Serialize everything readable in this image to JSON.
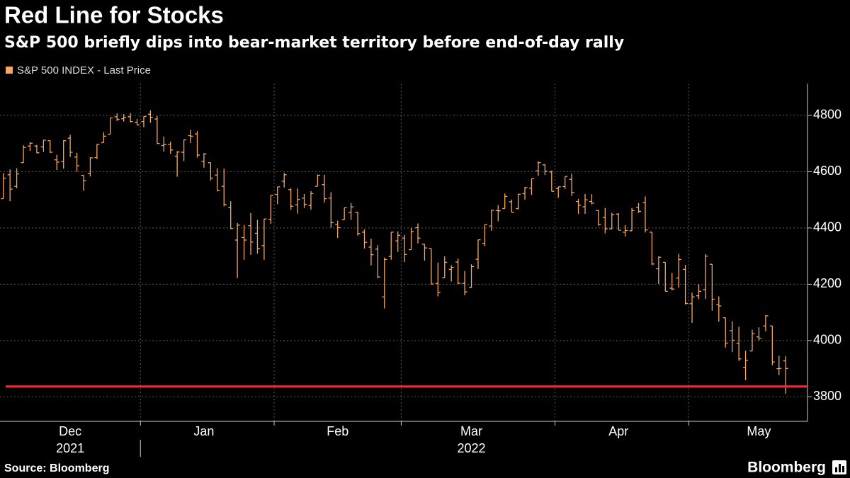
{
  "chart_data": {
    "type": "ohlc",
    "title": "Red Line for Stocks",
    "subtitle": "S&P 500 briefly dips into bear-market territory before end-of-day rally",
    "source": "Source: Bloomberg",
    "brand": "Bloomberg",
    "categories": [
      null,
      null,
      null,
      null,
      null,
      null,
      null,
      null,
      null,
      null,
      "Dec",
      null,
      null,
      null,
      null,
      null,
      null,
      null,
      null,
      null,
      null,
      null,
      null,
      null,
      null,
      null,
      null,
      null,
      null,
      null,
      "Jan",
      null,
      null,
      null,
      null,
      null,
      null,
      null,
      null,
      null,
      null,
      null,
      null,
      null,
      null,
      null,
      null,
      null,
      null,
      null,
      "Feb",
      null,
      null,
      null,
      null,
      null,
      null,
      null,
      null,
      null,
      null,
      null,
      null,
      null,
      null,
      null,
      null,
      null,
      null,
      null,
      "Mar",
      null,
      null,
      null,
      null,
      null,
      null,
      null,
      null,
      null,
      null,
      null,
      null,
      null,
      null,
      null,
      null,
      null,
      null,
      null,
      null,
      null,
      "Apr",
      null,
      null,
      null,
      null,
      null,
      null,
      null,
      null,
      null,
      null,
      null,
      null,
      null,
      null,
      null,
      null,
      null,
      null,
      null,
      null,
      "May",
      null,
      null,
      null,
      null
    ],
    "category_years": [
      null,
      null,
      null,
      null,
      null,
      null,
      null,
      null,
      null,
      null,
      "2021",
      null,
      null,
      null,
      null,
      null,
      null,
      null,
      null,
      null,
      null,
      null,
      null,
      null,
      null,
      null,
      null,
      null,
      null,
      null,
      null,
      null,
      null,
      null,
      null,
      null,
      null,
      null,
      null,
      null,
      null,
      null,
      null,
      null,
      null,
      null,
      null,
      null,
      null,
      null,
      null,
      null,
      null,
      null,
      null,
      null,
      null,
      null,
      null,
      null,
      null,
      null,
      null,
      null,
      null,
      null,
      null,
      null,
      null,
      null,
      "2022",
      null,
      null,
      null,
      null,
      null,
      null,
      null,
      null,
      null,
      null,
      null,
      null,
      null,
      null,
      null,
      null,
      null,
      null,
      null,
      null,
      null,
      null,
      null,
      null,
      null,
      null,
      null,
      null,
      null,
      null,
      null,
      null,
      null,
      null,
      null,
      null,
      null,
      null,
      null,
      null,
      null,
      null,
      null,
      null,
      null,
      null,
      null
    ],
    "series": [
      {
        "name": "S&P 500 INDEX - Last Price",
        "color": "#f5a85e",
        "open": [
          4504,
          4589,
          4548,
          4632,
          4691,
          4691,
          4688,
          4710,
          4642,
          4636,
          4719,
          4652,
          4587,
          4594,
          4650,
          4703,
          4733,
          4795,
          4788,
          4795,
          4775,
          4778,
          4804,
          4787,
          4693,
          4697,
          4655,
          4669,
          4728,
          4734,
          4637,
          4632,
          4588,
          4548,
          4472,
          4357,
          4366,
          4408,
          4381,
          4337,
          4431,
          4519,
          4566,
          4536,
          4482,
          4506,
          4480,
          4548,
          4554,
          4506,
          4412,
          4429,
          4455,
          4456,
          4385,
          4332,
          4325,
          4155,
          4299,
          4354,
          4364,
          4323,
          4401,
          4342,
          4327,
          4203,
          4223,
          4253,
          4279,
          4203,
          4189,
          4289,
          4345,
          4407,
          4462,
          4469,
          4493,
          4469,
          4522,
          4541,
          4603,
          4624,
          4599,
          4540,
          4547,
          4573,
          4494,
          4475,
          4494,
          4462,
          4437,
          4397,
          4449,
          4385,
          4390,
          4473,
          4490,
          4385,
          4255,
          4278,
          4186,
          4222,
          4253,
          4131,
          4159,
          4181,
          4271,
          4128,
          4081,
          4035,
          3990,
          3904,
          3963,
          4013,
          4052,
          4052,
          3900,
          3928
        ],
        "high": [
          4595,
          4608,
          4612,
          4694,
          4705,
          4695,
          4713,
          4711,
          4660,
          4712,
          4731,
          4667,
          4588,
          4651,
          4698,
          4740,
          4791,
          4807,
          4804,
          4808,
          4787,
          4796,
          4818,
          4798,
          4725,
          4707,
          4673,
          4714,
          4749,
          4744,
          4666,
          4632,
          4612,
          4611,
          4495,
          4418,
          4411,
          4453,
          4429,
          4432,
          4516,
          4546,
          4595,
          4540,
          4540,
          4521,
          4531,
          4590,
          4589,
          4527,
          4426,
          4472,
          4489,
          4456,
          4395,
          4362,
          4339,
          4295,
          4385,
          4388,
          4375,
          4401,
          4416,
          4343,
          4327,
          4277,
          4299,
          4268,
          4291,
          4247,
          4271,
          4358,
          4412,
          4465,
          4481,
          4522,
          4501,
          4521,
          4546,
          4575,
          4637,
          4627,
          4604,
          4547,
          4583,
          4593,
          4503,
          4521,
          4520,
          4464,
          4471,
          4454,
          4453,
          4410,
          4471,
          4489,
          4512,
          4386,
          4299,
          4278,
          4240,
          4308,
          4269,
          4170,
          4200,
          4307,
          4271,
          4157,
          4081,
          4068,
          4049,
          3964,
          4038,
          4047,
          4090,
          4052,
          3946,
          3944
        ],
        "low": [
          4504,
          4495,
          4541,
          4632,
          4674,
          4665,
          4670,
          4667,
          4606,
          4611,
          4652,
          4600,
          4532,
          4583,
          4645,
          4703,
          4733,
          4780,
          4778,
          4775,
          4765,
          4758,
          4774,
          4700,
          4671,
          4663,
          4582,
          4638,
          4702,
          4650,
          4614,
          4568,
          4530,
          4477,
          4396,
          4222,
          4287,
          4305,
          4309,
          4287,
          4415,
          4484,
          4544,
          4465,
          4451,
          4471,
          4465,
          4548,
          4491,
          4401,
          4364,
          4429,
          4429,
          4373,
          4327,
          4267,
          4221,
          4114,
          4287,
          4315,
          4279,
          4323,
          4345,
          4284,
          4199,
          4157,
          4223,
          4210,
          4200,
          4161,
          4187,
          4254,
          4335,
          4390,
          4424,
          4469,
          4455,
          4465,
          4501,
          4518,
          4585,
          4588,
          4530,
          4507,
          4539,
          4514,
          4450,
          4450,
          4484,
          4408,
          4381,
          4395,
          4392,
          4370,
          4390,
          4453,
          4384,
          4268,
          4201,
          4175,
          4178,
          4188,
          4128,
          4063,
          4147,
          4148,
          4106,
          4067,
          3975,
          3959,
          3928,
          3859,
          3963,
          3999,
          4033,
          3912,
          3877,
          3811
        ],
        "close": [
          4577,
          4538,
          4592,
          4686,
          4701,
          4667,
          4712,
          4669,
          4634,
          4710,
          4669,
          4621,
          4568,
          4649,
          4697,
          4726,
          4791,
          4786,
          4793,
          4778,
          4766,
          4796,
          4793,
          4700,
          4696,
          4677,
          4670,
          4713,
          4726,
          4659,
          4663,
          4577,
          4533,
          4483,
          4398,
          4410,
          4357,
          4350,
          4327,
          4432,
          4516,
          4546,
          4589,
          4477,
          4501,
          4484,
          4522,
          4587,
          4504,
          4419,
          4401,
          4472,
          4475,
          4380,
          4349,
          4305,
          4226,
          4288,
          4385,
          4374,
          4306,
          4387,
          4364,
          4329,
          4201,
          4171,
          4278,
          4260,
          4204,
          4173,
          4263,
          4358,
          4412,
          4463,
          4461,
          4512,
          4456,
          4520,
          4543,
          4575,
          4632,
          4602,
          4530,
          4546,
          4583,
          4526,
          4481,
          4500,
          4488,
          4413,
          4397,
          4447,
          4392,
          4391,
          4462,
          4459,
          4393,
          4272,
          4296,
          4175,
          4183,
          4288,
          4132,
          4155,
          4175,
          4300,
          4147,
          4123,
          3991,
          4001,
          3935,
          3930,
          4024,
          4008,
          4088,
          3924,
          3901,
          3901
        ]
      }
    ],
    "reference_line": {
      "value": 3837,
      "color": "#e8313a"
    },
    "ylim": [
      3713,
      4913
    ],
    "yticks": [
      3800,
      4000,
      4200,
      4400,
      4600,
      4800
    ],
    "grid": true
  }
}
